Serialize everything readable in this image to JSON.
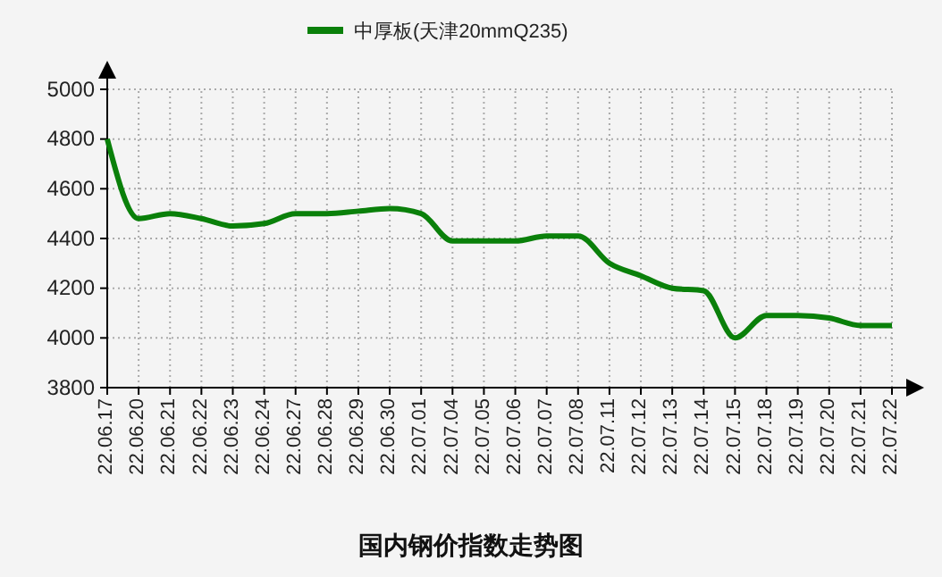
{
  "chart_data": {
    "type": "line",
    "title": "国内钢价指数走势图",
    "categories": [
      "22.06.17",
      "22.06.20",
      "22.06.21",
      "22.06.22",
      "22.06.23",
      "22.06.24",
      "22.06.27",
      "22.06.28",
      "22.06.29",
      "22.06.30",
      "22.07.01",
      "22.07.04",
      "22.07.05",
      "22.07.06",
      "22.07.07",
      "22.07.08",
      "22.07.11",
      "22.07.12",
      "22.07.13",
      "22.07.14",
      "22.07.15",
      "22.07.18",
      "22.07.19",
      "22.07.20",
      "22.07.21",
      "22.07.22"
    ],
    "series": [
      {
        "name": "中厚板(天津20mmQ235)",
        "color": "#0a800a",
        "values": [
          4800,
          4480,
          4500,
          4480,
          4450,
          4460,
          4500,
          4500,
          4510,
          4520,
          4500,
          4390,
          4390,
          4390,
          4410,
          4410,
          4300,
          4250,
          4200,
          4190,
          4000,
          4090,
          4090,
          4080,
          4050,
          4050
        ]
      }
    ],
    "ylim": [
      3800,
      5000
    ],
    "yticks": [
      3800,
      4000,
      4200,
      4400,
      4600,
      4800,
      5000
    ],
    "grid": true,
    "legend": "top",
    "marker": "none",
    "line_style": "solid"
  }
}
